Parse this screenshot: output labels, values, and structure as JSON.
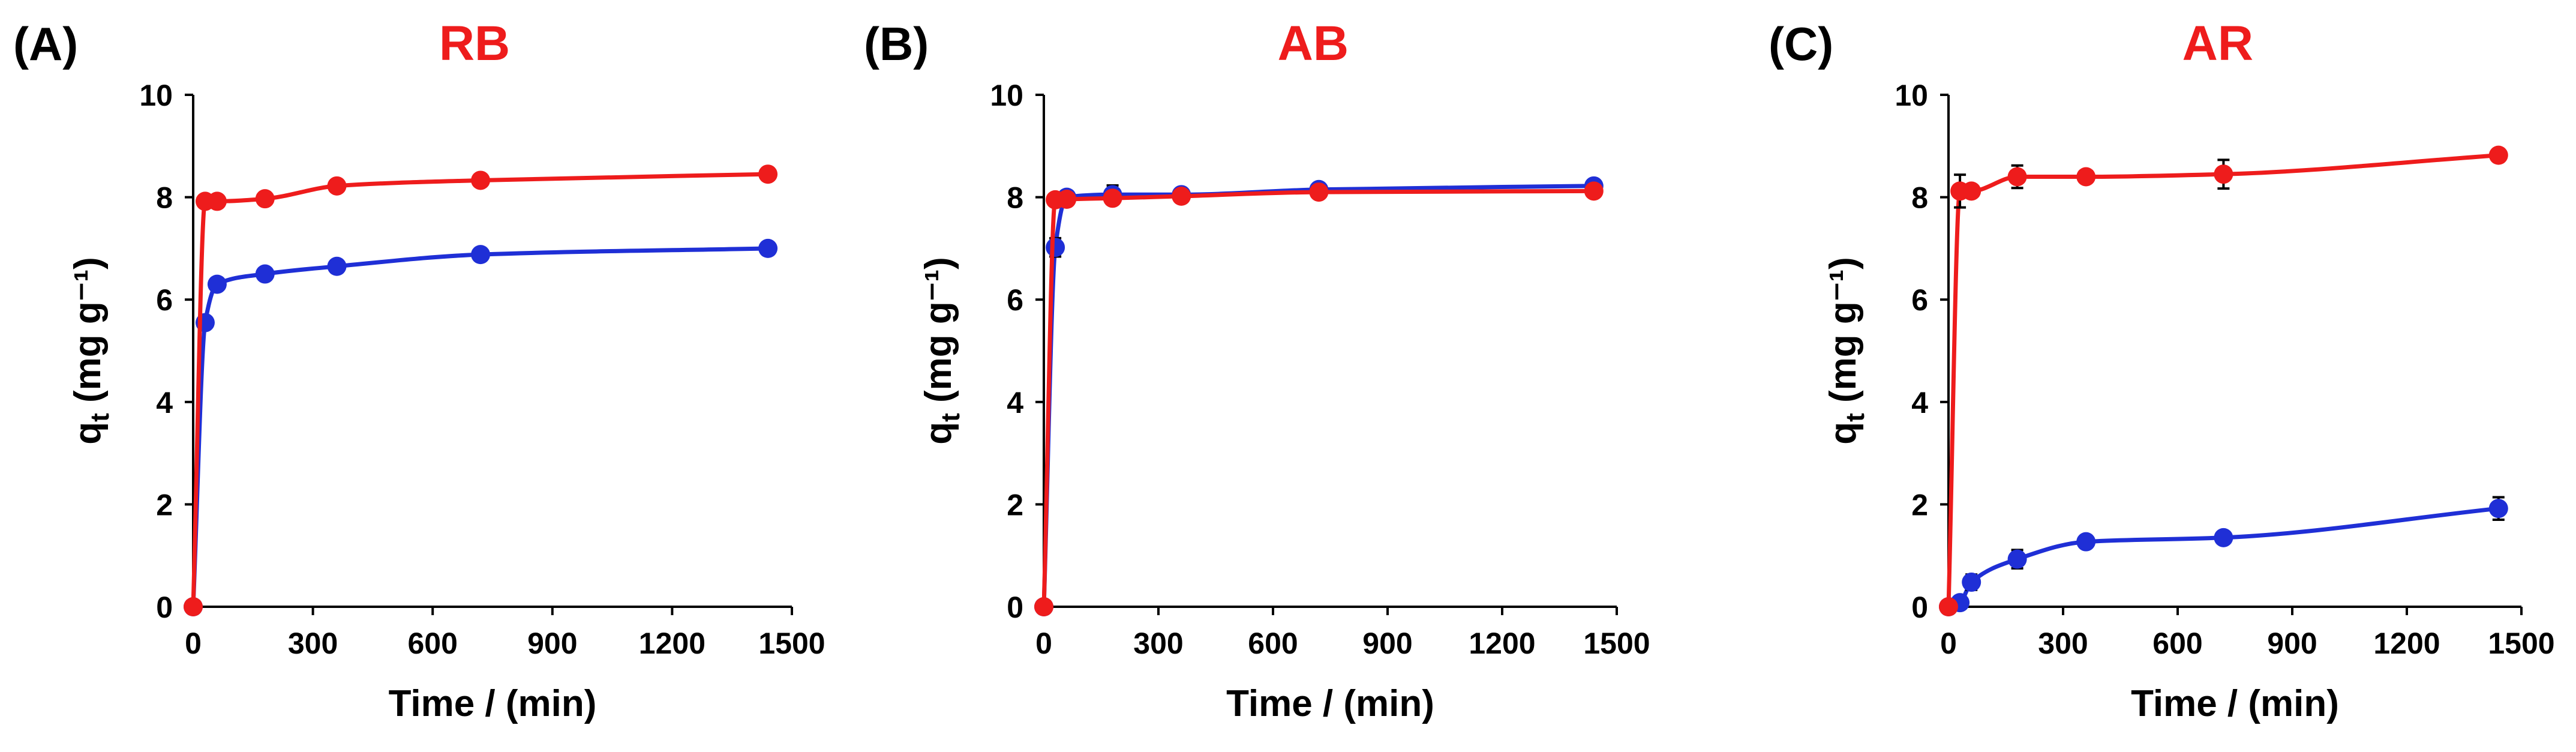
{
  "chart_data": [
    {
      "type": "line",
      "panel_label": "(A)",
      "title": "RB",
      "xlabel": "Time / (min)",
      "ylabel": "q",
      "ylabel_subscript": "t",
      "ylabel_unit": "(mg g⁻¹)",
      "xlim": [
        0,
        1500
      ],
      "ylim": [
        0,
        10
      ],
      "xticks": [
        0,
        300,
        600,
        900,
        1200,
        1500
      ],
      "yticks": [
        0,
        2,
        4,
        6,
        8,
        10
      ],
      "grid": false,
      "series": [
        {
          "color": "#1f2fd6",
          "x": [
            0,
            30,
            60,
            180,
            360,
            720,
            1440
          ],
          "y": [
            0,
            5.55,
            6.3,
            6.5,
            6.65,
            6.88,
            7.0
          ],
          "err": [
            0,
            0,
            0,
            0,
            0,
            0,
            0
          ]
        },
        {
          "color": "#ee1c1c",
          "x": [
            0,
            30,
            60,
            180,
            360,
            720,
            1440
          ],
          "y": [
            0,
            7.92,
            7.92,
            7.97,
            8.22,
            8.33,
            8.45
          ],
          "err": [
            0,
            0,
            0,
            0,
            0,
            0,
            0
          ]
        }
      ]
    },
    {
      "type": "line",
      "panel_label": "(B)",
      "title": "AB",
      "xlabel": "Time / (min)",
      "ylabel": "q",
      "ylabel_subscript": "t",
      "ylabel_unit": "(mg g⁻¹)",
      "xlim": [
        0,
        1500
      ],
      "ylim": [
        0,
        10
      ],
      "xticks": [
        0,
        300,
        600,
        900,
        1200,
        1500
      ],
      "yticks": [
        0,
        2,
        4,
        6,
        8,
        10
      ],
      "grid": false,
      "series": [
        {
          "color": "#1f2fd6",
          "x": [
            0,
            30,
            60,
            180,
            360,
            720,
            1440
          ],
          "y": [
            0,
            7.02,
            8.0,
            8.05,
            8.05,
            8.15,
            8.22
          ],
          "err": [
            0,
            0.18,
            0,
            0.18,
            0,
            0,
            0
          ]
        },
        {
          "color": "#ee1c1c",
          "x": [
            0,
            30,
            60,
            180,
            360,
            720,
            1440
          ],
          "y": [
            0,
            7.95,
            7.96,
            7.98,
            8.02,
            8.1,
            8.12
          ],
          "err": [
            0,
            0,
            0,
            0,
            0,
            0,
            0
          ]
        }
      ]
    },
    {
      "type": "line",
      "panel_label": "(C)",
      "title": "AR",
      "xlabel": "Time / (min)",
      "ylabel": "q",
      "ylabel_subscript": "t",
      "ylabel_unit": "(mg g⁻¹)",
      "xlim": [
        0,
        1500
      ],
      "ylim": [
        0,
        10
      ],
      "xticks": [
        0,
        300,
        600,
        900,
        1200,
        1500
      ],
      "yticks": [
        0,
        2,
        4,
        6,
        8,
        10
      ],
      "grid": false,
      "series": [
        {
          "color": "#1f2fd6",
          "x": [
            0,
            30,
            60,
            180,
            360,
            720,
            1440
          ],
          "y": [
            0,
            0.08,
            0.48,
            0.93,
            1.27,
            1.35,
            1.92
          ],
          "err": [
            0,
            0,
            0.15,
            0.18,
            0,
            0,
            0.22
          ]
        },
        {
          "color": "#ee1c1c",
          "x": [
            0,
            30,
            60,
            180,
            360,
            720,
            1440
          ],
          "y": [
            0,
            8.12,
            8.12,
            8.4,
            8.4,
            8.45,
            8.82
          ],
          "err": [
            0,
            0.32,
            0,
            0.22,
            0,
            0.28,
            0
          ]
        }
      ]
    }
  ]
}
